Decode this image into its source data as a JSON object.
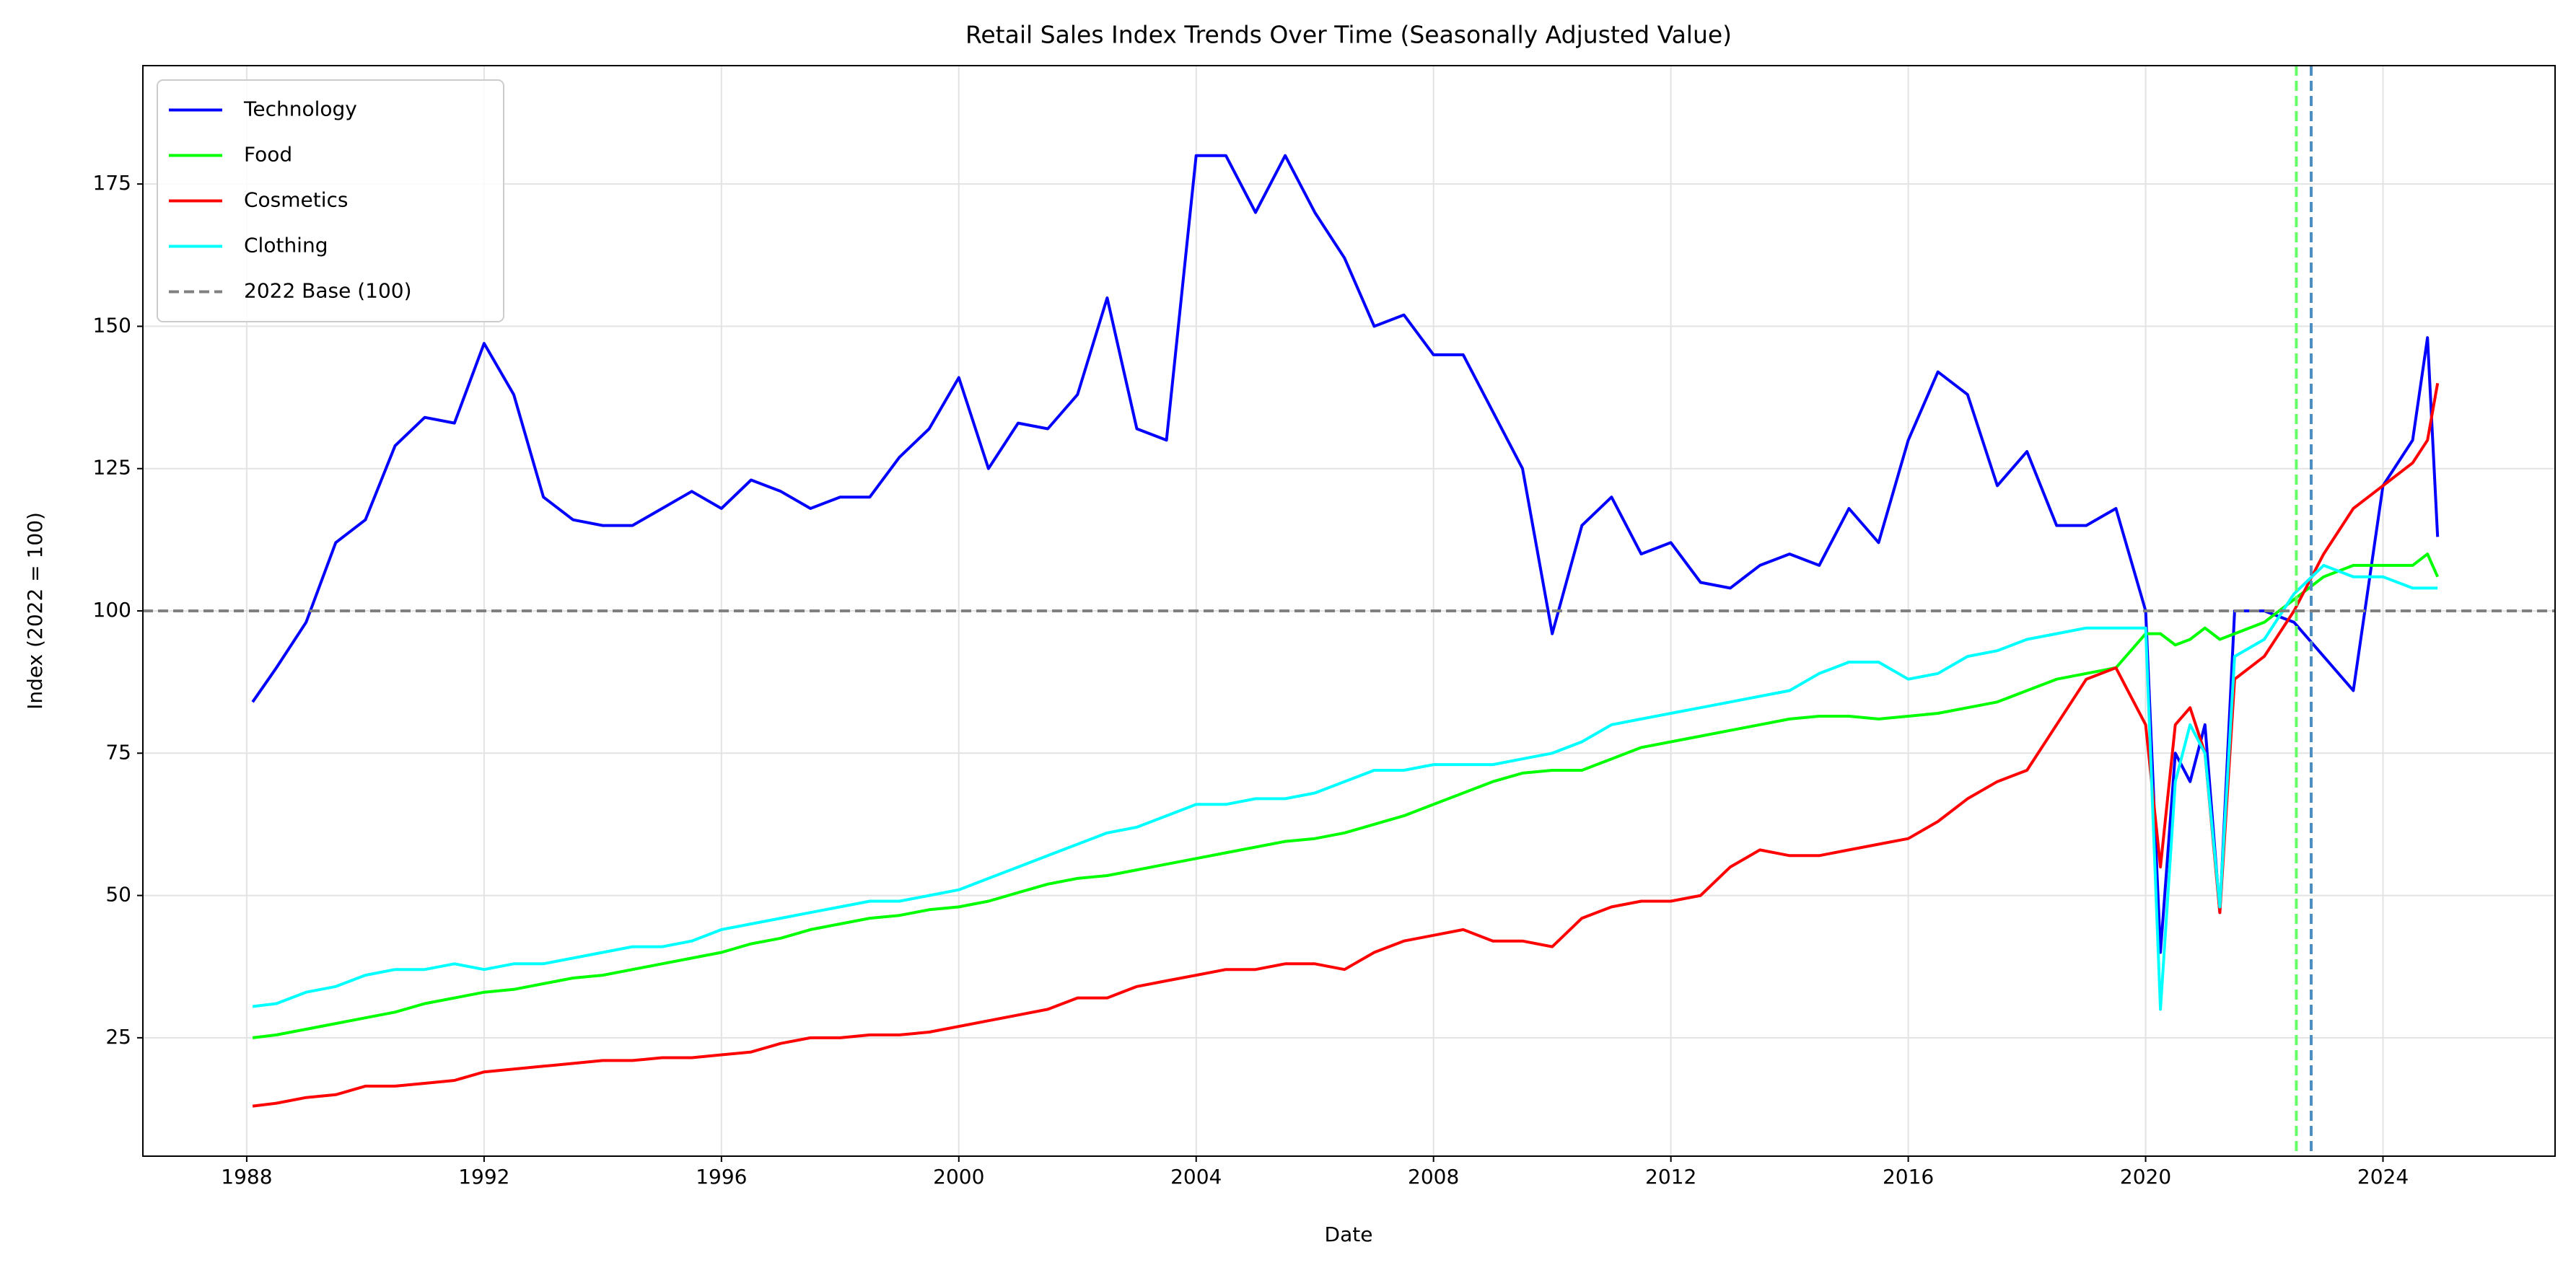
{
  "chart_data": {
    "type": "line",
    "title": "Retail Sales Index Trends Over Time (Seasonally Adjusted Value)",
    "x_label": "Date",
    "y_label": "Index (2022 = 100)",
    "x": [
      1988.1,
      1988.5,
      1989,
      1989.5,
      1990,
      1990.5,
      1991,
      1991.5,
      1992,
      1992.5,
      1993,
      1993.5,
      1994,
      1994.5,
      1995,
      1995.5,
      1996,
      1996.5,
      1997,
      1997.5,
      1998,
      1998.5,
      1999,
      1999.5,
      2000,
      2000.5,
      2001,
      2001.5,
      2002,
      2002.5,
      2003,
      2003.5,
      2004,
      2004.5,
      2005,
      2005.5,
      2006,
      2006.5,
      2007,
      2007.5,
      2008,
      2008.5,
      2009,
      2009.5,
      2010,
      2010.5,
      2011,
      2011.5,
      2012,
      2012.5,
      2013,
      2013.5,
      2014,
      2014.5,
      2015,
      2015.5,
      2016,
      2016.5,
      2017,
      2017.5,
      2018,
      2018.5,
      2019,
      2019.5,
      2020,
      2020.25,
      2020.5,
      2020.75,
      2021,
      2021.25,
      2021.5,
      2022,
      2022.5,
      2023,
      2023.5,
      2024,
      2024.5,
      2024.75,
      2024.92
    ],
    "series": [
      {
        "name": "Technology",
        "color": "#0000ff",
        "values": [
          84,
          90,
          98,
          112,
          116,
          129,
          134,
          133,
          147,
          138,
          120,
          116,
          115,
          115,
          118,
          121,
          118,
          123,
          121,
          118,
          120,
          120,
          127,
          132,
          141,
          125,
          133,
          132,
          138,
          155,
          132,
          130,
          180,
          180,
          170,
          180,
          170,
          162,
          150,
          152,
          145,
          145,
          135,
          125,
          96,
          115,
          120,
          110,
          112,
          105,
          104,
          108,
          110,
          108,
          118,
          112,
          130,
          142,
          138,
          122,
          128,
          115,
          115,
          118,
          100,
          40,
          75,
          70,
          80,
          47,
          100,
          100,
          98,
          92,
          86,
          122,
          130,
          148,
          113
        ]
      },
      {
        "name": "Food",
        "color": "#00ff00",
        "values": [
          25,
          25.5,
          26.5,
          27.5,
          28.5,
          29.5,
          31,
          32,
          33,
          33.5,
          34.5,
          35.5,
          36,
          37,
          38,
          39,
          40,
          41.5,
          42.5,
          44,
          45,
          46,
          46.5,
          47.5,
          48,
          49,
          50.5,
          52,
          53,
          53.5,
          54.5,
          55.5,
          56.5,
          57.5,
          58.5,
          59.5,
          60,
          61,
          62.5,
          64,
          66,
          68,
          70,
          71.5,
          72,
          72,
          74,
          76,
          77,
          78,
          79,
          80,
          81,
          81.5,
          81.5,
          81,
          81.5,
          82,
          83,
          84,
          86,
          88,
          89,
          90,
          96,
          96,
          94,
          95,
          97,
          95,
          96,
          98,
          102,
          106,
          108,
          108,
          108,
          110,
          106
        ]
      },
      {
        "name": "Cosmetics",
        "color": "#ff0000",
        "values": [
          13,
          13.5,
          14.5,
          15,
          16.5,
          16.5,
          17,
          17.5,
          19,
          19.5,
          20,
          20.5,
          21,
          21,
          21.5,
          21.5,
          22,
          22.5,
          24,
          25,
          25,
          25.5,
          25.5,
          26,
          27,
          28,
          29,
          30,
          32,
          32,
          34,
          35,
          36,
          37,
          37,
          38,
          38,
          37,
          40,
          42,
          43,
          44,
          42,
          42,
          41,
          46,
          48,
          49,
          49,
          50,
          55,
          58,
          57,
          57,
          58,
          59,
          60,
          63,
          67,
          70,
          72,
          80,
          88,
          90,
          80,
          55,
          80,
          83,
          75,
          47,
          88,
          92,
          100,
          110,
          118,
          122,
          126,
          130,
          140
        ]
      },
      {
        "name": "Clothing",
        "color": "#00ffff",
        "values": [
          30.5,
          31,
          33,
          34,
          36,
          37,
          37,
          38,
          37,
          38,
          38,
          39,
          40,
          41,
          41,
          42,
          44,
          45,
          46,
          47,
          48,
          49,
          49,
          50,
          51,
          53,
          55,
          57,
          59,
          61,
          62,
          64,
          66,
          66,
          67,
          67,
          68,
          70,
          72,
          72,
          73,
          73,
          73,
          74,
          75,
          77,
          80,
          81,
          82,
          83,
          84,
          85,
          86,
          89,
          91,
          91,
          88,
          89,
          92,
          93,
          95,
          96,
          97,
          97,
          97,
          30,
          70,
          80,
          75,
          48,
          92,
          95,
          103,
          108,
          106,
          106,
          104,
          104,
          104
        ]
      }
    ],
    "hlines": [
      {
        "y": 100,
        "label": "2022 Base (100)",
        "color": "#808080"
      }
    ],
    "vlines": [
      {
        "x": 2022.54,
        "color": "#66ff66"
      },
      {
        "x": 2022.79,
        "color": "#4f8fbf"
      }
    ],
    "xlim": [
      1986.25,
      2026.9
    ],
    "ylim": [
      4.2,
      195.8
    ],
    "xticks": [
      1988,
      1992,
      1996,
      2000,
      2004,
      2008,
      2012,
      2016,
      2020,
      2024
    ],
    "yticks": [
      25,
      50,
      75,
      100,
      125,
      150,
      175
    ],
    "grid": true,
    "legend": "upper left"
  }
}
